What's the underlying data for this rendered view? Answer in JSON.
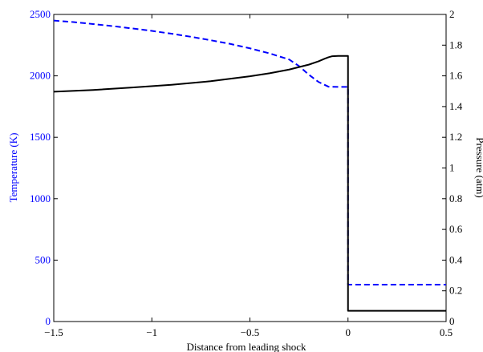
{
  "chart_data": {
    "type": "line",
    "xlabel": "Distance from leading shock",
    "ylabel_left": "Temperature (K)",
    "ylabel_right": "Pressure (atm)",
    "xlim": [
      -1.5,
      0.5
    ],
    "ylim_left": [
      0,
      2500
    ],
    "ylim_right": [
      0,
      2
    ],
    "x_ticks": [
      "−1.5",
      "−1",
      "−0.5",
      "0",
      "0.5"
    ],
    "x_tick_values": [
      -1.5,
      -1,
      -0.5,
      0,
      0.5
    ],
    "y_left_ticks": [
      "0",
      "500",
      "1000",
      "1500",
      "2000",
      "2500"
    ],
    "y_left_tick_values": [
      0,
      500,
      1000,
      1500,
      2000,
      2500
    ],
    "y_right_ticks": [
      "0",
      "0.2",
      "0.4",
      "0.6",
      "0.8",
      "1",
      "1.2",
      "1.4",
      "1.6",
      "1.8",
      "2"
    ],
    "y_right_tick_values": [
      0,
      0.2,
      0.4,
      0.6,
      0.8,
      1,
      1.2,
      1.4,
      1.6,
      1.8,
      2
    ],
    "grid": false,
    "colors": {
      "temperature": "#0000ff",
      "pressure": "#000000",
      "left_axis_text": "#0000ff",
      "right_axis_text": "#000000"
    },
    "series": [
      {
        "axis": "left",
        "style": "dashed",
        "x": [
          -1.5,
          -1.4,
          -1.3,
          -1.2,
          -1.1,
          -1.0,
          -0.9,
          -0.8,
          -0.7,
          -0.6,
          -0.5,
          -0.4,
          -0.3,
          -0.25,
          -0.2,
          -0.15,
          -0.1,
          -0.05,
          0.0,
          0.0,
          0.5
        ],
        "y": [
          2450,
          2438,
          2422,
          2405,
          2386,
          2366,
          2343,
          2318,
          2290,
          2260,
          2224,
          2183,
          2133,
          2080,
          2010,
          1950,
          1912,
          1910,
          1910,
          300,
          300
        ]
      },
      {
        "axis": "right",
        "style": "solid",
        "x": [
          -1.5,
          -1.3,
          -1.1,
          -0.9,
          -0.7,
          -0.5,
          -0.4,
          -0.3,
          -0.2,
          -0.15,
          -0.12,
          -0.1,
          -0.08,
          -0.05,
          -0.02,
          0.0,
          0.0,
          0.5
        ],
        "y": [
          1.497,
          1.508,
          1.524,
          1.542,
          1.565,
          1.597,
          1.617,
          1.641,
          1.673,
          1.695,
          1.711,
          1.721,
          1.728,
          1.73,
          1.73,
          1.73,
          0.07,
          0.07
        ]
      }
    ]
  }
}
